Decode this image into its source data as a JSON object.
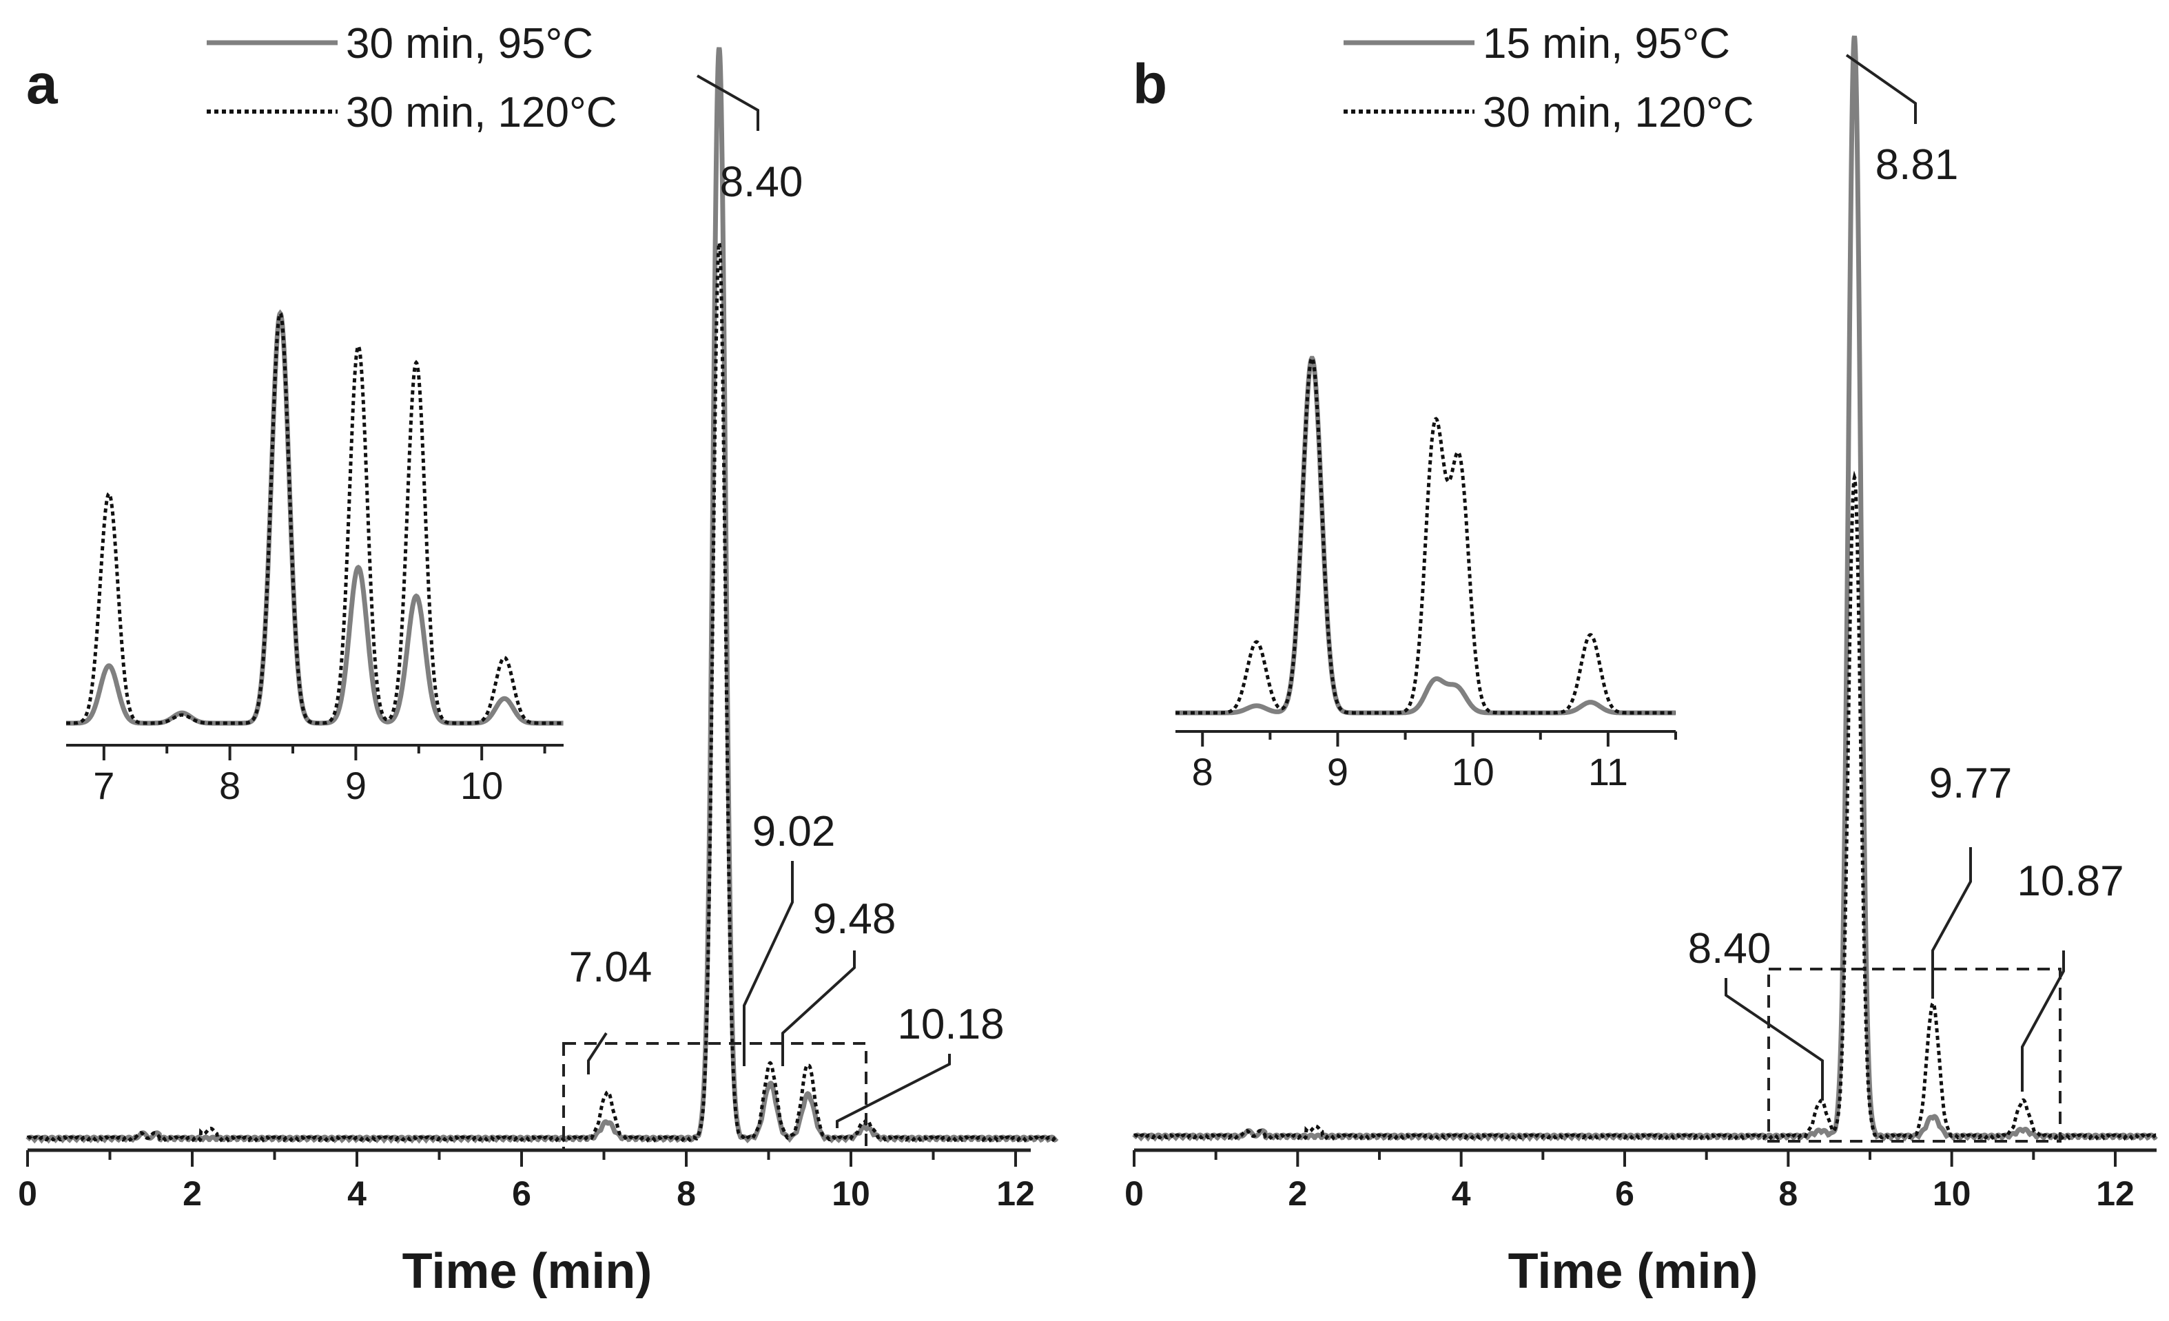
{
  "chart_data": [
    {
      "type": "line",
      "panel_label": "a",
      "xlabel": "Time (min)",
      "ylabel": "",
      "xlim": [
        0,
        12.5
      ],
      "xticks": [
        "0",
        "2",
        "4",
        "6",
        "8",
        "10",
        "12"
      ],
      "y_axis_visible": false,
      "series": [
        {
          "name": "30 min, 95°C",
          "style": "solid",
          "color": "#808080",
          "peaks": [
            {
              "t": 7.04,
              "h": 0.015
            },
            {
              "t": 8.4,
              "h": 1.0
            },
            {
              "t": 9.02,
              "h": 0.05
            },
            {
              "t": 9.48,
              "h": 0.04
            },
            {
              "t": 10.18,
              "h": 0.01
            }
          ]
        },
        {
          "name": "30 min, 120°C",
          "style": "dashed",
          "color": "#111111",
          "peaks": [
            {
              "t": 7.04,
              "h": 0.042
            },
            {
              "t": 8.4,
              "h": 0.82
            },
            {
              "t": 9.02,
              "h": 0.068
            },
            {
              "t": 9.48,
              "h": 0.068
            },
            {
              "t": 10.18,
              "h": 0.016
            }
          ]
        }
      ],
      "annotations": [
        "7.04",
        "8.40",
        "9.02",
        "9.48",
        "10.18"
      ],
      "zoom_box": {
        "x": [
          6.8,
          10.5
        ]
      },
      "inset": {
        "xlim": [
          6.7,
          10.65
        ],
        "xticks": [
          "7",
          "8",
          "9",
          "10"
        ],
        "series": [
          {
            "name": "30 min, 95°C",
            "peaks": [
              {
                "t": 7.04,
                "h": 0.14
              },
              {
                "t": 7.62,
                "h": 0.025
              },
              {
                "t": 8.4,
                "h": 1.0
              },
              {
                "t": 9.02,
                "h": 0.38
              },
              {
                "t": 9.48,
                "h": 0.31
              },
              {
                "t": 10.18,
                "h": 0.06
              }
            ]
          },
          {
            "name": "30 min, 120°C",
            "peaks": [
              {
                "t": 7.04,
                "h": 0.56
              },
              {
                "t": 7.62,
                "h": 0.02
              },
              {
                "t": 8.4,
                "h": 1.0
              },
              {
                "t": 9.02,
                "h": 0.92
              },
              {
                "t": 9.48,
                "h": 0.88
              },
              {
                "t": 10.18,
                "h": 0.16
              }
            ]
          }
        ]
      }
    },
    {
      "type": "line",
      "panel_label": "b",
      "xlabel": "Time (min)",
      "ylabel": "",
      "xlim": [
        0,
        12.5
      ],
      "xticks": [
        "0",
        "2",
        "4",
        "6",
        "8",
        "10",
        "12"
      ],
      "y_axis_visible": false,
      "series": [
        {
          "name": "15 min, 95°C",
          "style": "solid",
          "color": "#808080",
          "peaks": [
            {
              "t": 8.4,
              "h": 0.005
            },
            {
              "t": 8.81,
              "h": 1.0
            },
            {
              "t": 9.77,
              "h": 0.018
            },
            {
              "t": 10.87,
              "h": 0.006
            }
          ]
        },
        {
          "name": "30 min, 120°C",
          "style": "dashed",
          "color": "#111111",
          "peaks": [
            {
              "t": 8.4,
              "h": 0.032
            },
            {
              "t": 8.81,
              "h": 0.6
            },
            {
              "t": 9.77,
              "h": 0.12
            },
            {
              "t": 10.87,
              "h": 0.032
            }
          ]
        }
      ],
      "annotations": [
        "8.40",
        "8.81",
        "9.77",
        "10.87"
      ],
      "zoom_box": {
        "x": [
          7.8,
          11.35
        ]
      },
      "inset": {
        "xlim": [
          7.8,
          11.5
        ],
        "xticks": [
          "8",
          "9",
          "10",
          "11"
        ],
        "series": [
          {
            "name": "15 min, 95°C",
            "peaks": [
              {
                "t": 8.4,
                "h": 0.02
              },
              {
                "t": 8.81,
                "h": 1.0
              },
              {
                "t": 9.72,
                "h": 0.09
              },
              {
                "t": 9.88,
                "h": 0.07
              },
              {
                "t": 10.87,
                "h": 0.03
              }
            ]
          },
          {
            "name": "30 min, 120°C",
            "peaks": [
              {
                "t": 8.4,
                "h": 0.2
              },
              {
                "t": 8.81,
                "h": 1.0
              },
              {
                "t": 9.72,
                "h": 0.8
              },
              {
                "t": 9.9,
                "h": 0.7
              },
              {
                "t": 10.87,
                "h": 0.22
              }
            ]
          }
        ]
      }
    }
  ]
}
